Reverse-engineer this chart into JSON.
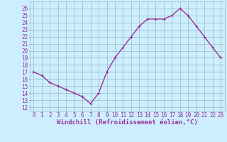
{
  "x": [
    0,
    1,
    2,
    3,
    4,
    5,
    6,
    7,
    8,
    9,
    10,
    11,
    12,
    13,
    14,
    15,
    16,
    17,
    18,
    19,
    20,
    21,
    22,
    23
  ],
  "y": [
    17,
    16.5,
    15.5,
    15,
    14.5,
    14,
    13.5,
    12.5,
    14,
    17,
    19,
    20.5,
    22,
    23.5,
    24.5,
    24.5,
    24.5,
    25,
    26,
    25,
    23.5,
    22,
    20.5,
    19
  ],
  "line_color": "#993399",
  "marker": "+",
  "marker_size": 3,
  "bg_color": "#cceeff",
  "grid_color": "#99bbbb",
  "xlabel": "Windchill (Refroidissement éolien,°C)",
  "xlabel_color": "#993399",
  "tick_color": "#993399",
  "xlim": [
    -0.5,
    23.5
  ],
  "ylim": [
    11.5,
    27
  ],
  "yticks": [
    12,
    13,
    14,
    15,
    16,
    17,
    18,
    19,
    20,
    21,
    22,
    23,
    24,
    25,
    26
  ],
  "xtick_labels": [
    "0",
    "1",
    "2",
    "3",
    "4",
    "5",
    "6",
    "7",
    "8",
    "9",
    "10",
    "11",
    "12",
    "13",
    "14",
    "15",
    "16",
    "17",
    "18",
    "19",
    "20",
    "21",
    "22",
    "23"
  ],
  "xlabel_fontsize": 6.5,
  "tick_fontsize": 5.5,
  "linewidth": 1.0
}
